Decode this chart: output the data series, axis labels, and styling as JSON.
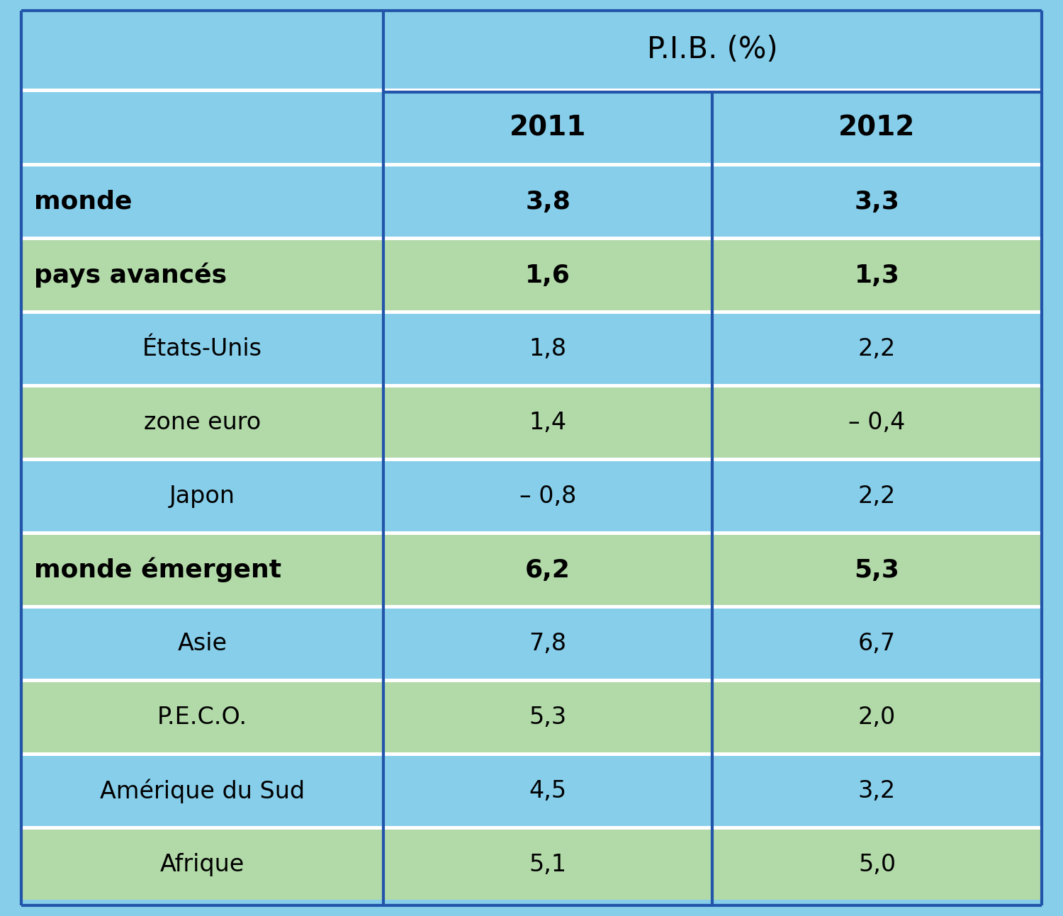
{
  "title": "P.I.B. (%)",
  "col_headers": [
    "2011",
    "2012"
  ],
  "rows": [
    {
      "label": "monde",
      "val2011": "3,8",
      "val2012": "3,3",
      "bold": true,
      "bg": "blue"
    },
    {
      "label": "pays avancés",
      "val2011": "1,6",
      "val2012": "1,3",
      "bold": true,
      "bg": "green"
    },
    {
      "label": "États-Unis",
      "val2011": "1,8",
      "val2012": "2,2",
      "bold": false,
      "bg": "blue"
    },
    {
      "label": "zone euro",
      "val2011": "1,4",
      "val2012": "– 0,4",
      "bold": false,
      "bg": "green"
    },
    {
      "label": "Japon",
      "val2011": "– 0,8",
      "val2012": "2,2",
      "bold": false,
      "bg": "blue"
    },
    {
      "label": "monde émergent",
      "val2011": "6,2",
      "val2012": "5,3",
      "bold": true,
      "bg": "green"
    },
    {
      "label": "Asie",
      "val2011": "7,8",
      "val2012": "6,7",
      "bold": false,
      "bg": "blue"
    },
    {
      "label": "P.E.C.O.",
      "val2011": "5,3",
      "val2012": "2,0",
      "bold": false,
      "bg": "green"
    },
    {
      "label": "Amérique du Sud",
      "val2011": "4,5",
      "val2012": "3,2",
      "bold": false,
      "bg": "blue"
    },
    {
      "label": "Afrique",
      "val2011": "5,1",
      "val2012": "5,0",
      "bold": false,
      "bg": "green"
    }
  ],
  "color_blue": "#87CEEB",
  "color_green": "#B2D9A8",
  "color_border": "#2255AA",
  "color_white_sep": "#FFFFFF",
  "text_color": "#000000",
  "figsize": [
    15.0,
    12.93
  ],
  "dpi": 100
}
